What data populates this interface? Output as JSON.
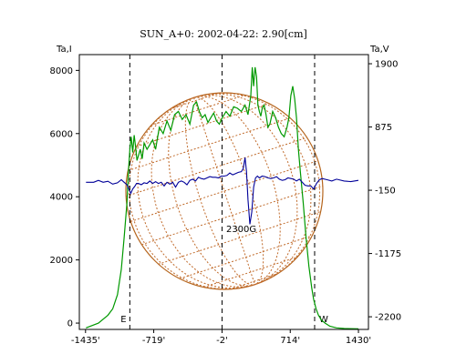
{
  "chart_data": {
    "type": "line",
    "title": "SUN_A+0: 2002-04-22: 2.90[cm]",
    "y_left_label": "Ta,I",
    "y_right_label": "Ta,V",
    "x_ticks": [
      {
        "value": -1435,
        "label": "-1435'"
      },
      {
        "value": -719,
        "label": "-719'"
      },
      {
        "value": -2,
        "label": "-2'"
      },
      {
        "value": 714,
        "label": "714'"
      },
      {
        "value": 1430,
        "label": "1430'"
      }
    ],
    "y_left_ticks": [
      {
        "value": 0,
        "label": "0"
      },
      {
        "value": 2000,
        "label": "2000"
      },
      {
        "value": 4000,
        "label": "4000"
      },
      {
        "value": 6000,
        "label": "6000"
      },
      {
        "value": 8000,
        "label": "8000"
      }
    ],
    "y_right_ticks": [
      {
        "value": -2200,
        "label": "-2200"
      },
      {
        "value": -1175,
        "label": "-1175"
      },
      {
        "value": -150,
        "label": "-150"
      },
      {
        "value": 875,
        "label": "875"
      },
      {
        "value": 1900,
        "label": "1900"
      }
    ],
    "xlim": [
      -1500,
      1535
    ],
    "ylim_left": [
      -200,
      8500
    ],
    "ylim_right": [
      -2405,
      2048
    ],
    "grid": false,
    "limb_markers": [
      {
        "x": -970,
        "label": "E"
      },
      {
        "x": 970,
        "label": "W"
      }
    ],
    "center_marker_x": -2,
    "annotation": {
      "text": "2300G",
      "x": 200,
      "y": 2880
    },
    "series": [
      {
        "axis": "left",
        "color": "#009900",
        "x": [
          -1430,
          -1300,
          -1200,
          -1150,
          -1100,
          -1060,
          -1030,
          -1000,
          -985,
          -970,
          -955,
          -940,
          -925,
          -910,
          -895,
          -880,
          -860,
          -840,
          -820,
          -790,
          -760,
          -730,
          -700,
          -660,
          -620,
          -580,
          -540,
          -500,
          -460,
          -420,
          -380,
          -340,
          -300,
          -270,
          -240,
          -210,
          -180,
          -150,
          -120,
          -90,
          -60,
          -30,
          0,
          40,
          80,
          120,
          160,
          200,
          240,
          270,
          300,
          315,
          330,
          345,
          360,
          375,
          390,
          405,
          420,
          440,
          460,
          480,
          500,
          530,
          560,
          590,
          620,
          650,
          680,
          700,
          720,
          740,
          760,
          780,
          800,
          820,
          850,
          880,
          910,
          940,
          960,
          985,
          1010,
          1040,
          1080,
          1130,
          1200,
          1280,
          1430
        ],
        "y": [
          -150,
          0,
          250,
          450,
          900,
          1700,
          2700,
          3800,
          4800,
          5500,
          5900,
          5400,
          5950,
          5600,
          5150,
          5300,
          5500,
          5200,
          5700,
          5500,
          5650,
          5800,
          5500,
          6200,
          6000,
          6400,
          6100,
          6600,
          6700,
          6450,
          6600,
          6300,
          6900,
          7000,
          6700,
          6500,
          6600,
          6350,
          6500,
          6650,
          6400,
          6300,
          6500,
          6700,
          6550,
          6850,
          6800,
          6700,
          6900,
          6600,
          7200,
          8100,
          7500,
          8100,
          7800,
          6900,
          6700,
          6550,
          6800,
          6900,
          6600,
          6200,
          6300,
          6700,
          6500,
          6200,
          6000,
          5900,
          6200,
          6500,
          7200,
          7500,
          7100,
          6500,
          5500,
          4800,
          3800,
          2700,
          1800,
          1100,
          750,
          450,
          250,
          100,
          0,
          -100,
          -150,
          -170,
          -180
        ]
      },
      {
        "axis": "right",
        "color": "#000099",
        "x": [
          -1430,
          -1350,
          -1300,
          -1250,
          -1200,
          -1150,
          -1100,
          -1060,
          -1030,
          -1000,
          -980,
          -960,
          -940,
          -920,
          -900,
          -880,
          -850,
          -820,
          -790,
          -760,
          -730,
          -700,
          -670,
          -640,
          -610,
          -580,
          -550,
          -520,
          -490,
          -460,
          -430,
          -400,
          -370,
          -340,
          -310,
          -280,
          -250,
          -220,
          -190,
          -160,
          -130,
          -100,
          -70,
          -40,
          -10,
          20,
          50,
          80,
          110,
          140,
          170,
          200,
          220,
          240,
          255,
          270,
          290,
          310,
          330,
          350,
          370,
          390,
          420,
          450,
          480,
          510,
          540,
          570,
          600,
          630,
          660,
          690,
          720,
          750,
          780,
          810,
          840,
          870,
          900,
          930,
          960,
          990,
          1020,
          1050,
          1100,
          1150,
          1200,
          1280,
          1350,
          1430
        ],
        "y": [
          -20,
          -20,
          10,
          -20,
          -5,
          -50,
          -30,
          20,
          -20,
          -60,
          -130,
          -200,
          -130,
          -90,
          -40,
          -40,
          -60,
          -30,
          -40,
          0,
          -40,
          -10,
          -40,
          -20,
          -80,
          -20,
          -50,
          -20,
          -100,
          -20,
          0,
          -20,
          -60,
          10,
          30,
          0,
          60,
          40,
          30,
          50,
          70,
          60,
          60,
          50,
          80,
          80,
          90,
          130,
          100,
          120,
          140,
          150,
          200,
          380,
          150,
          -300,
          -700,
          -500,
          -100,
          50,
          80,
          50,
          80,
          70,
          50,
          40,
          50,
          70,
          30,
          10,
          20,
          50,
          40,
          30,
          0,
          30,
          -20,
          -70,
          -80,
          -80,
          -130,
          -40,
          20,
          40,
          20,
          0,
          30,
          0,
          -10,
          10
        ]
      }
    ]
  }
}
